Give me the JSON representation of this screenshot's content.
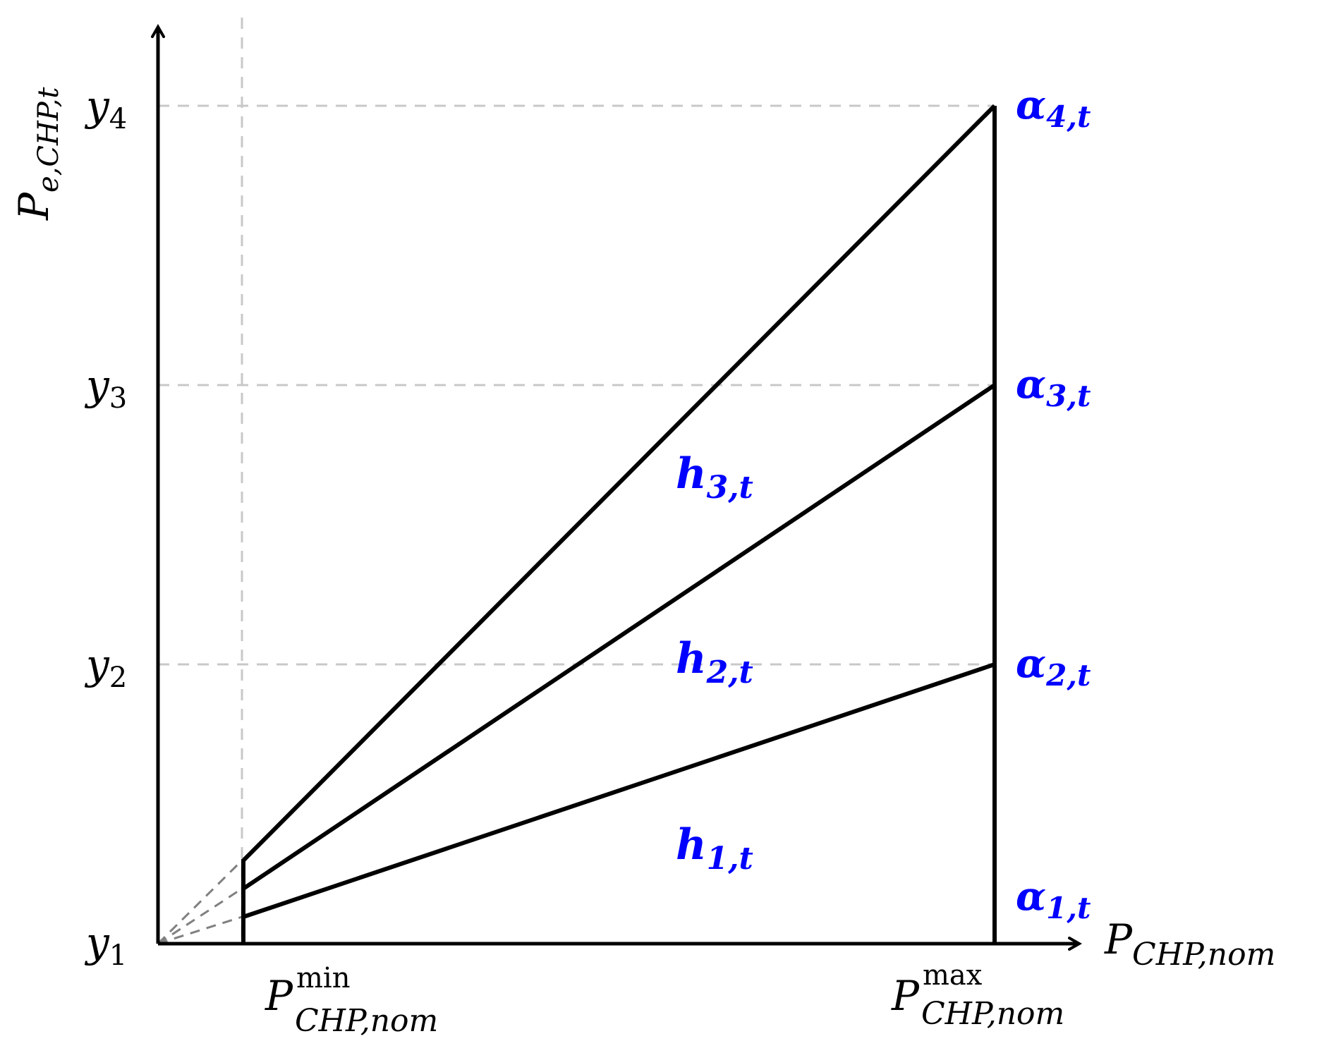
{
  "colors": {
    "axis": "#000000",
    "line": "#000000",
    "grid": "#c8c8c8",
    "extension": "#808080",
    "accent": "#0000ff"
  },
  "y_axis": {
    "label_main": "P",
    "label_sub": "e,CHP,t",
    "ticks": [
      {
        "main": "y",
        "sub": "1"
      },
      {
        "main": "y",
        "sub": "2"
      },
      {
        "main": "y",
        "sub": "3"
      },
      {
        "main": "y",
        "sub": "4"
      }
    ]
  },
  "x_axis": {
    "label_main": "P",
    "label_sub": "CHP,nom",
    "pmin": {
      "main": "P",
      "sup": "min",
      "sub": "CHP,nom"
    },
    "pmax": {
      "main": "P",
      "sup": "max",
      "sub": "CHP,nom"
    }
  },
  "alpha_labels": [
    {
      "main": "α",
      "sub": "1,t"
    },
    {
      "main": "α",
      "sub": "2,t"
    },
    {
      "main": "α",
      "sub": "3,t"
    },
    {
      "main": "α",
      "sub": "4,t"
    }
  ],
  "h_labels": [
    {
      "main": "h",
      "sub": "1,t"
    },
    {
      "main": "h",
      "sub": "2,t"
    },
    {
      "main": "h",
      "sub": "3,t"
    }
  ]
}
